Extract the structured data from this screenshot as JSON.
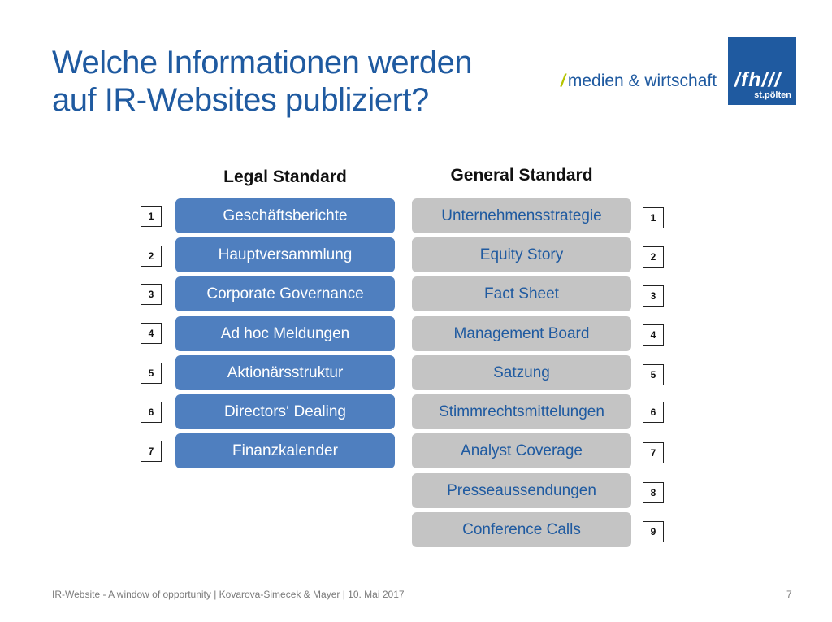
{
  "title": {
    "line1": "Welche Informationen werden",
    "line2": "auf IR-Websites publiziert?"
  },
  "brand": {
    "slash": "/",
    "text": "medien & wirtschaft",
    "logo_main": "/fh///",
    "logo_sub": "st.pölten",
    "logo_color": "#1f5aa0",
    "slash_color": "#b5c400"
  },
  "legal": {
    "heading": "Legal Standard",
    "color": "#4f7fbf",
    "items": [
      {
        "num": "1",
        "label": "Geschäftsberichte"
      },
      {
        "num": "2",
        "label": "Hauptversammlung"
      },
      {
        "num": "3",
        "label": "Corporate Governance"
      },
      {
        "num": "4",
        "label": "Ad hoc Meldungen"
      },
      {
        "num": "5",
        "label": "Aktionärsstruktur"
      },
      {
        "num": "6",
        "label": "Directors‘ Dealing"
      },
      {
        "num": "7",
        "label": "Finanzkalender"
      }
    ]
  },
  "general": {
    "heading": "General Standard",
    "color": "#c4c4c4",
    "items": [
      {
        "num": "1",
        "label": "Unternehmensstrategie"
      },
      {
        "num": "2",
        "label": "Equity Story"
      },
      {
        "num": "3",
        "label": "Fact Sheet"
      },
      {
        "num": "4",
        "label": "Management Board"
      },
      {
        "num": "5",
        "label": "Satzung"
      },
      {
        "num": "6",
        "label": "Stimmrechtsmittelungen"
      },
      {
        "num": "7",
        "label": "Analyst Coverage"
      },
      {
        "num": "8",
        "label": "Presseaussendungen"
      },
      {
        "num": "9",
        "label": "Conference Calls"
      }
    ]
  },
  "footer": {
    "text": "IR-Website - A window of opportunity | Kovarova-Simecek & Mayer | 10. Mai 2017",
    "page": "7"
  }
}
